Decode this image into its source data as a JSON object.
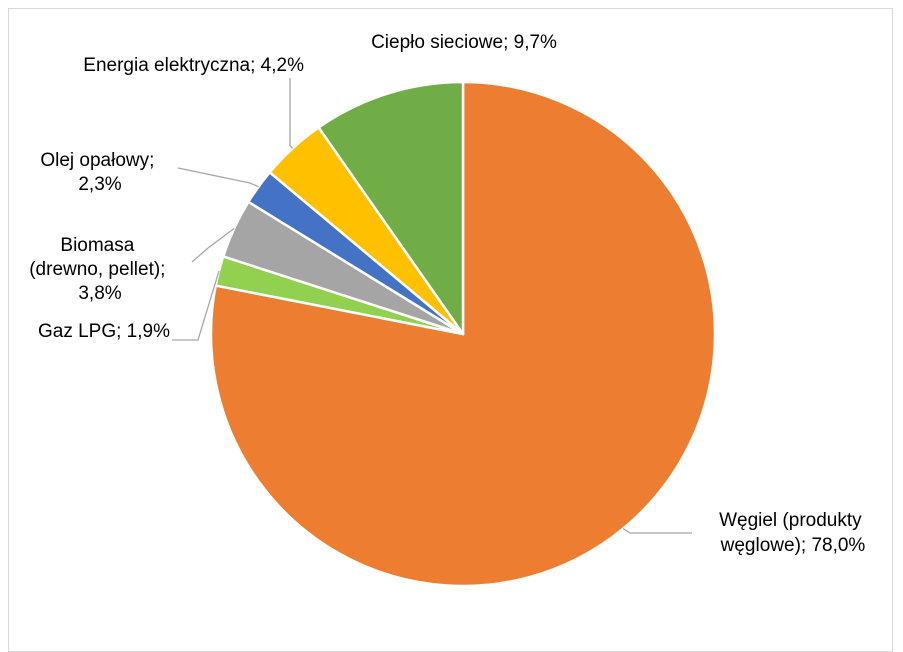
{
  "chart_data": {
    "type": "pie",
    "start_angle_deg": 0,
    "direction": "clockwise",
    "slices": [
      {
        "name": "Węgiel (produkty węglowe)",
        "value": 78.0,
        "value_label": "78,0%",
        "color": "#ED7D31",
        "label_lines": [
          "Węgiel (produkty",
          "węglowe); 78,0%"
        ]
      },
      {
        "name": "Gaz LPG",
        "value": 1.9,
        "value_label": "1,9%",
        "color": "#92D050",
        "label_lines": [
          "Gaz LPG; 1,9%"
        ]
      },
      {
        "name": "Biomasa (drewno, pellet)",
        "value": 3.8,
        "value_label": "3,8%",
        "color": "#A5A5A5",
        "label_lines": [
          "Biomasa",
          "(drewno, pellet);",
          "3,8%"
        ]
      },
      {
        "name": "Olej opałowy",
        "value": 2.3,
        "value_label": "2,3%",
        "color": "#4472C4",
        "label_lines": [
          "Olej opałowy;",
          "2,3%"
        ]
      },
      {
        "name": "Energia elektryczna",
        "value": 4.2,
        "value_label": "4,2%",
        "color": "#FFC000",
        "label_lines": [
          "Energia elektryczna; 4,2%"
        ]
      },
      {
        "name": "Ciepło sieciowe",
        "value": 9.7,
        "value_label": "9,7%",
        "color": "#70AD47",
        "label_lines": [
          "Ciepło sieciowe; 9,7%"
        ]
      }
    ],
    "legend": "none"
  }
}
